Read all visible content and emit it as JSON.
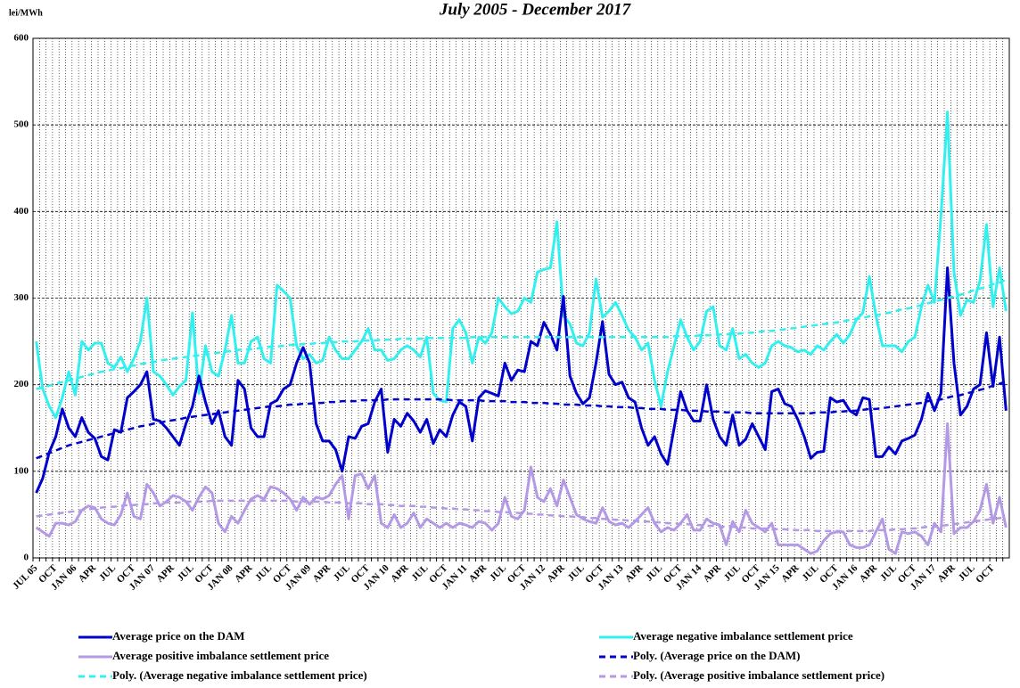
{
  "chart_data": {
    "type": "line",
    "title": "July 2005 - December 2017",
    "y_label": "lei/MWh",
    "categories": [
      "JUL 05",
      null,
      null,
      "OCT",
      null,
      null,
      "JAN 06",
      null,
      null,
      "APR",
      null,
      null,
      "JUL",
      null,
      null,
      "OCT",
      null,
      null,
      "JAN 07",
      null,
      null,
      "APR",
      null,
      null,
      "JUL",
      null,
      null,
      "OCT",
      null,
      null,
      "JAN 08",
      null,
      null,
      "APR",
      null,
      null,
      "JUL",
      null,
      null,
      "OCT",
      null,
      null,
      "JAN 09",
      null,
      null,
      "APR",
      null,
      null,
      "JUL",
      null,
      null,
      "OCT",
      null,
      null,
      "JAN 10",
      null,
      null,
      "APR",
      null,
      null,
      "JUL",
      null,
      null,
      "OCT",
      null,
      null,
      "JAN 11",
      null,
      null,
      "APR",
      null,
      null,
      "JUL",
      null,
      null,
      "OCT",
      null,
      null,
      "JAN 12",
      null,
      null,
      "APR",
      null,
      null,
      "JUL",
      null,
      null,
      "OCT",
      null,
      null,
      "JAN 13",
      null,
      null,
      "APR",
      null,
      null,
      "JUL",
      null,
      null,
      "OCT",
      null,
      null,
      "JAN 14",
      null,
      null,
      "APR",
      null,
      null,
      "JUL",
      null,
      null,
      "OCT",
      null,
      null,
      "JAN 15",
      null,
      null,
      "APR",
      null,
      null,
      "JUL",
      null,
      null,
      "OCT",
      null,
      null,
      "JAN 16",
      null,
      null,
      "APR",
      null,
      null,
      "JUL",
      null,
      null,
      "OCT",
      null,
      null,
      "JAN 17",
      null,
      null,
      "APR",
      null,
      null,
      "JUL",
      null,
      null,
      "OCT",
      null,
      null
    ],
    "ylim": [
      0,
      600
    ],
    "yticks": [
      0,
      100,
      200,
      300,
      400,
      500,
      600
    ],
    "grid": true,
    "series": [
      {
        "name": "Average price on the DAM",
        "color": "#0000cc",
        "style": "solid",
        "values": [
          75,
          92,
          122,
          140,
          172,
          150,
          140,
          162,
          145,
          138,
          117,
          113,
          148,
          145,
          185,
          192,
          200,
          215,
          160,
          158,
          150,
          140,
          130,
          155,
          175,
          210,
          180,
          155,
          170,
          140,
          130,
          205,
          195,
          150,
          140,
          140,
          178,
          182,
          195,
          200,
          225,
          243,
          225,
          155,
          135,
          135,
          125,
          100,
          140,
          138,
          152,
          155,
          180,
          195,
          122,
          160,
          152,
          167,
          158,
          145,
          160,
          132,
          148,
          140,
          165,
          180,
          175,
          135,
          185,
          193,
          190,
          187,
          225,
          205,
          217,
          215,
          250,
          245,
          272,
          258,
          240,
          302,
          210,
          190,
          178,
          185,
          225,
          273,
          212,
          200,
          203,
          185,
          180,
          150,
          130,
          140,
          120,
          108,
          150,
          192,
          170,
          158,
          158,
          200,
          160,
          140,
          130,
          165,
          130,
          137,
          155,
          140,
          125,
          192,
          195,
          178,
          175,
          160,
          140,
          115,
          122,
          123,
          185,
          180,
          182,
          170,
          165,
          185,
          183,
          117,
          117,
          128,
          120,
          135,
          138,
          142,
          160,
          190,
          170,
          190,
          335,
          225,
          165,
          175,
          195,
          200,
          260,
          198,
          255,
          170
        ]
      },
      {
        "name": "Average negative imbalance settlement price",
        "color": "#33f0f0",
        "style": "solid",
        "values": [
          250,
          195,
          175,
          162,
          185,
          215,
          188,
          250,
          240,
          248,
          248,
          225,
          220,
          232,
          215,
          230,
          250,
          300,
          215,
          210,
          200,
          188,
          198,
          205,
          283,
          190,
          245,
          215,
          210,
          240,
          280,
          225,
          225,
          250,
          255,
          230,
          225,
          315,
          308,
          300,
          245,
          230,
          235,
          225,
          228,
          255,
          240,
          230,
          230,
          240,
          250,
          265,
          240,
          240,
          228,
          230,
          240,
          245,
          240,
          232,
          255,
          190,
          182,
          180,
          265,
          275,
          260,
          225,
          255,
          248,
          260,
          300,
          290,
          282,
          285,
          300,
          295,
          330,
          333,
          335,
          388,
          280,
          270,
          248,
          245,
          260,
          322,
          278,
          285,
          295,
          280,
          263,
          255,
          240,
          248,
          205,
          175,
          215,
          245,
          275,
          255,
          240,
          250,
          285,
          290,
          245,
          240,
          265,
          230,
          235,
          225,
          220,
          225,
          245,
          250,
          245,
          243,
          238,
          240,
          235,
          245,
          240,
          250,
          258,
          248,
          258,
          275,
          283,
          325,
          280,
          245,
          245,
          245,
          238,
          250,
          255,
          290,
          315,
          295,
          395,
          515,
          330,
          280,
          298,
          295,
          320,
          385,
          290,
          335,
          285
        ]
      },
      {
        "name": "Average positive imbalance settlement price",
        "color": "#b399e6",
        "style": "solid",
        "values": [
          35,
          30,
          25,
          40,
          40,
          38,
          42,
          55,
          60,
          58,
          45,
          40,
          38,
          50,
          75,
          48,
          45,
          85,
          75,
          60,
          65,
          72,
          70,
          65,
          55,
          70,
          82,
          75,
          40,
          30,
          48,
          40,
          55,
          68,
          72,
          68,
          82,
          80,
          75,
          68,
          55,
          70,
          62,
          70,
          68,
          72,
          85,
          95,
          45,
          95,
          97,
          80,
          95,
          40,
          35,
          50,
          35,
          40,
          52,
          35,
          45,
          40,
          35,
          40,
          35,
          40,
          38,
          35,
          42,
          40,
          32,
          40,
          70,
          48,
          45,
          55,
          105,
          70,
          65,
          80,
          60,
          90,
          70,
          50,
          45,
          42,
          40,
          58,
          42,
          38,
          40,
          35,
          42,
          50,
          58,
          40,
          30,
          35,
          32,
          40,
          50,
          32,
          32,
          45,
          40,
          38,
          15,
          42,
          30,
          55,
          40,
          35,
          30,
          40,
          15,
          15,
          15,
          15,
          10,
          5,
          8,
          20,
          28,
          30,
          30,
          15,
          12,
          12,
          15,
          30,
          45,
          10,
          5,
          30,
          28,
          30,
          25,
          15,
          40,
          30,
          155,
          28,
          35,
          35,
          42,
          55,
          85,
          40,
          70,
          35
        ]
      },
      {
        "name": "Poly. (Average price on the DAM)",
        "color": "#0000cc",
        "style": "dashed",
        "values": [
          115,
          118,
          121,
          124,
          127,
          130,
          132,
          134,
          136,
          138,
          140,
          142,
          144,
          146,
          148,
          150,
          152,
          153,
          155,
          156,
          158,
          159,
          160,
          162,
          163,
          164,
          165,
          166,
          167,
          168,
          169,
          170,
          171,
          172,
          173,
          174,
          175,
          175,
          176,
          177,
          177,
          178,
          178,
          179,
          179,
          180,
          180,
          181,
          181,
          181,
          182,
          182,
          182,
          182,
          183,
          183,
          183,
          183,
          183,
          183,
          183,
          183,
          183,
          183,
          182,
          182,
          182,
          182,
          182,
          181,
          181,
          181,
          181,
          180,
          180,
          180,
          179,
          179,
          179,
          178,
          178,
          177,
          177,
          177,
          176,
          176,
          176,
          175,
          175,
          174,
          174,
          174,
          173,
          173,
          172,
          172,
          172,
          171,
          171,
          171,
          170,
          170,
          170,
          169,
          169,
          169,
          168,
          168,
          168,
          168,
          167,
          167,
          167,
          167,
          167,
          167,
          167,
          167,
          167,
          167,
          168,
          168,
          168,
          169,
          169,
          170,
          170,
          171,
          172,
          172,
          173,
          174,
          175,
          176,
          177,
          178,
          179,
          181,
          182,
          183,
          185,
          187,
          188,
          190,
          192,
          194,
          196,
          199,
          201,
          204
        ]
      },
      {
        "name": "Poly. (Average negative imbalance settlement price)",
        "color": "#33f0f0",
        "style": "dashed",
        "values": [
          195,
          197,
          199,
          201,
          203,
          205,
          207,
          209,
          211,
          213,
          215,
          216,
          218,
          219,
          221,
          222,
          224,
          225,
          226,
          228,
          229,
          230,
          231,
          232,
          233,
          234,
          235,
          236,
          237,
          238,
          239,
          240,
          241,
          241,
          242,
          243,
          244,
          244,
          245,
          246,
          246,
          247,
          247,
          248,
          248,
          249,
          249,
          250,
          250,
          250,
          251,
          251,
          251,
          252,
          252,
          252,
          253,
          253,
          253,
          253,
          254,
          254,
          254,
          254,
          254,
          254,
          254,
          255,
          255,
          255,
          255,
          255,
          255,
          255,
          255,
          255,
          255,
          255,
          255,
          255,
          255,
          255,
          255,
          255,
          255,
          255,
          255,
          255,
          255,
          255,
          255,
          255,
          255,
          255,
          255,
          255,
          255,
          255,
          256,
          256,
          256,
          256,
          257,
          257,
          257,
          258,
          258,
          259,
          259,
          260,
          260,
          261,
          262,
          262,
          263,
          264,
          265,
          266,
          267,
          268,
          269,
          270,
          271,
          272,
          273,
          275,
          276,
          277,
          279,
          280,
          282,
          283,
          285,
          287,
          288,
          290,
          292,
          294,
          296,
          298,
          300,
          302,
          304,
          306,
          309,
          311,
          313,
          316,
          318,
          321
        ]
      },
      {
        "name": "Poly. (Average positive imbalance settlement price)",
        "color": "#b399e6",
        "style": "dashed",
        "values": [
          48,
          49,
          50,
          51,
          52,
          53,
          54,
          55,
          56,
          57,
          58,
          59,
          59,
          60,
          61,
          61,
          62,
          62,
          63,
          63,
          64,
          64,
          64,
          65,
          65,
          65,
          65,
          66,
          66,
          66,
          66,
          66,
          66,
          66,
          66,
          66,
          66,
          66,
          66,
          66,
          65,
          65,
          65,
          65,
          65,
          64,
          64,
          64,
          63,
          63,
          63,
          62,
          62,
          62,
          61,
          61,
          60,
          60,
          60,
          59,
          59,
          58,
          58,
          57,
          57,
          56,
          56,
          55,
          55,
          54,
          54,
          53,
          53,
          52,
          52,
          51,
          51,
          50,
          50,
          49,
          49,
          48,
          48,
          47,
          47,
          46,
          46,
          45,
          45,
          44,
          44,
          43,
          43,
          42,
          42,
          41,
          41,
          40,
          40,
          39,
          39,
          38,
          38,
          37,
          37,
          36,
          36,
          36,
          35,
          35,
          34,
          34,
          34,
          33,
          33,
          33,
          32,
          32,
          32,
          32,
          31,
          31,
          31,
          31,
          31,
          31,
          31,
          31,
          31,
          32,
          32,
          32,
          33,
          33,
          34,
          34,
          35,
          36,
          36,
          37,
          38,
          39,
          40,
          41,
          42,
          43,
          44,
          45,
          46,
          47
        ]
      }
    ]
  }
}
